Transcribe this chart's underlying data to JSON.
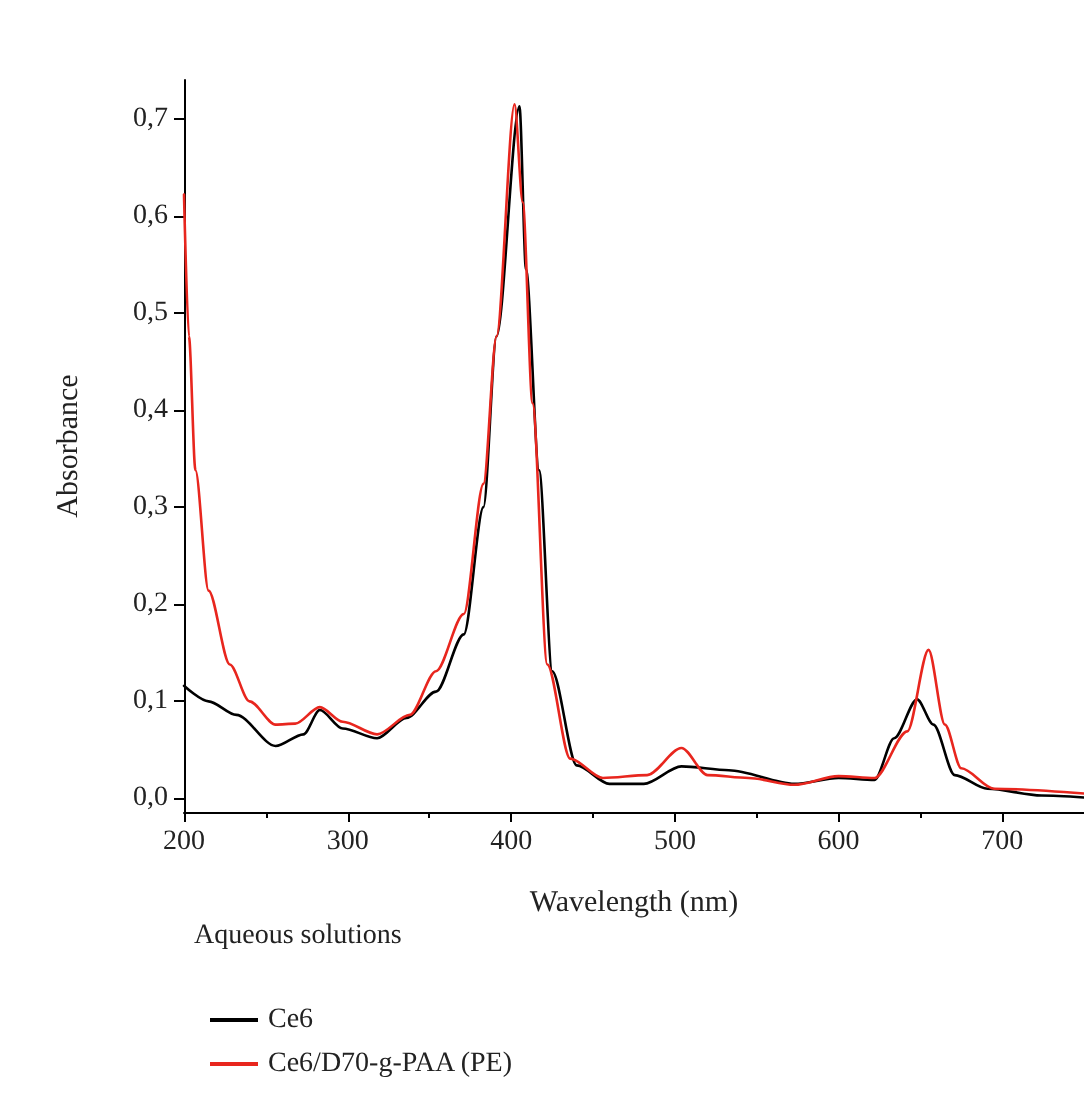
{
  "chart_data": {
    "type": "line",
    "xlabel": "Wavelength (nm)",
    "ylabel": "Absorbance",
    "legend_title": "Aqueous solutions",
    "legend": "bottom",
    "grid": false,
    "marker": "none",
    "line_style": "solid",
    "xlim": [
      200,
      750
    ],
    "xticks": [
      200,
      300,
      400,
      500,
      600,
      700
    ],
    "ylim": [
      -0.014,
      0.74
    ],
    "yticks": [
      {
        "value": 0,
        "label": "0,0"
      },
      {
        "value": 0.1,
        "label": "0,1"
      },
      {
        "value": 0.2,
        "label": "0,2"
      },
      {
        "value": 0.3,
        "label": "0,3"
      },
      {
        "value": 0.4,
        "label": "0,4"
      },
      {
        "value": 0.5,
        "label": "0,5"
      },
      {
        "value": 0.6,
        "label": "0,6"
      },
      {
        "value": 0.7,
        "label": "0,7"
      }
    ],
    "series": [
      {
        "name": "Ce6",
        "color": "#000000",
        "x": [
          200,
          215,
          232,
          256,
          273,
          283,
          297,
          318,
          336,
          354,
          371,
          383,
          391,
          405,
          409,
          417,
          425,
          440,
          460,
          481,
          504,
          533,
          573,
          600,
          622,
          634,
          648,
          658,
          671,
          691,
          724,
          750
        ],
        "values": [
          0.116,
          0.1,
          0.086,
          0.054,
          0.066,
          0.091,
          0.072,
          0.062,
          0.083,
          0.11,
          0.169,
          0.3,
          0.476,
          0.713,
          0.545,
          0.338,
          0.131,
          0.034,
          0.015,
          0.015,
          0.033,
          0.029,
          0.015,
          0.021,
          0.019,
          0.062,
          0.102,
          0.076,
          0.024,
          0.01,
          0.003,
          0.001
        ]
      },
      {
        "name": "Ce6/D70-g-PAA (PE)",
        "color": "#e8261e",
        "x": [
          200,
          203,
          207,
          215,
          228,
          240,
          256,
          268,
          283,
          297,
          318,
          338,
          354,
          371,
          383,
          391,
          402,
          407,
          413,
          422,
          436,
          456,
          483,
          504,
          520,
          545,
          573,
          600,
          622,
          642,
          655,
          665,
          675,
          695,
          750
        ],
        "values": [
          0.622,
          0.476,
          0.338,
          0.214,
          0.138,
          0.1,
          0.076,
          0.077,
          0.094,
          0.079,
          0.066,
          0.086,
          0.131,
          0.19,
          0.324,
          0.476,
          0.715,
          0.614,
          0.407,
          0.138,
          0.041,
          0.021,
          0.024,
          0.052,
          0.024,
          0.021,
          0.014,
          0.023,
          0.021,
          0.069,
          0.153,
          0.076,
          0.031,
          0.01,
          0.005
        ]
      }
    ]
  }
}
